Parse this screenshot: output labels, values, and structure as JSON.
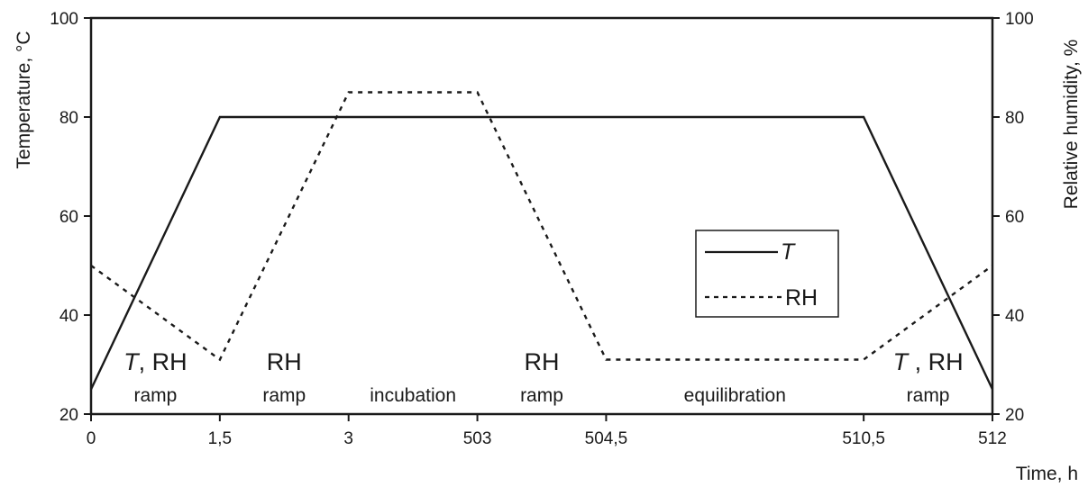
{
  "chart_data": {
    "type": "line",
    "xlabel": "Time, h",
    "ylabel": "Temperature, °C",
    "ylabel_right": "Relative humidity, %",
    "ylim": [
      20,
      100
    ],
    "ylim_right": [
      20,
      100
    ],
    "y_ticks": [
      "20",
      "40",
      "60",
      "80",
      "100"
    ],
    "y_ticks_right": [
      "20",
      "40",
      "60",
      "80",
      "100"
    ],
    "x_ticks": [
      "0",
      "1,5",
      "3",
      "503",
      "504,5",
      "510,5",
      "512"
    ],
    "grid": false,
    "legend_position": "right",
    "series": [
      {
        "name": "T",
        "style": "solid",
        "x": [
          "0",
          "1,5",
          "3",
          "503",
          "504,5",
          "510,5",
          "512"
        ],
        "values": [
          25,
          80,
          80,
          80,
          80,
          80,
          25
        ]
      },
      {
        "name": "RH",
        "style": "dashed",
        "x": [
          "0",
          "1,5",
          "3",
          "503",
          "504,5",
          "510,5",
          "512"
        ],
        "values": [
          50,
          31,
          85,
          85,
          31,
          31,
          50
        ]
      }
    ],
    "phases": [
      {
        "symbol_italic": "T",
        "symbol_rest": ", RH",
        "label": "ramp"
      },
      {
        "symbol_italic": "",
        "symbol_rest": "RH",
        "label": "ramp"
      },
      {
        "symbol_italic": "",
        "symbol_rest": "",
        "label": "incubation"
      },
      {
        "symbol_italic": "",
        "symbol_rest": "RH",
        "label": "ramp"
      },
      {
        "symbol_italic": "",
        "symbol_rest": "",
        "label": "equilibration"
      },
      {
        "symbol_italic": "T",
        "symbol_rest": " , RH",
        "label": "ramp"
      }
    ]
  }
}
